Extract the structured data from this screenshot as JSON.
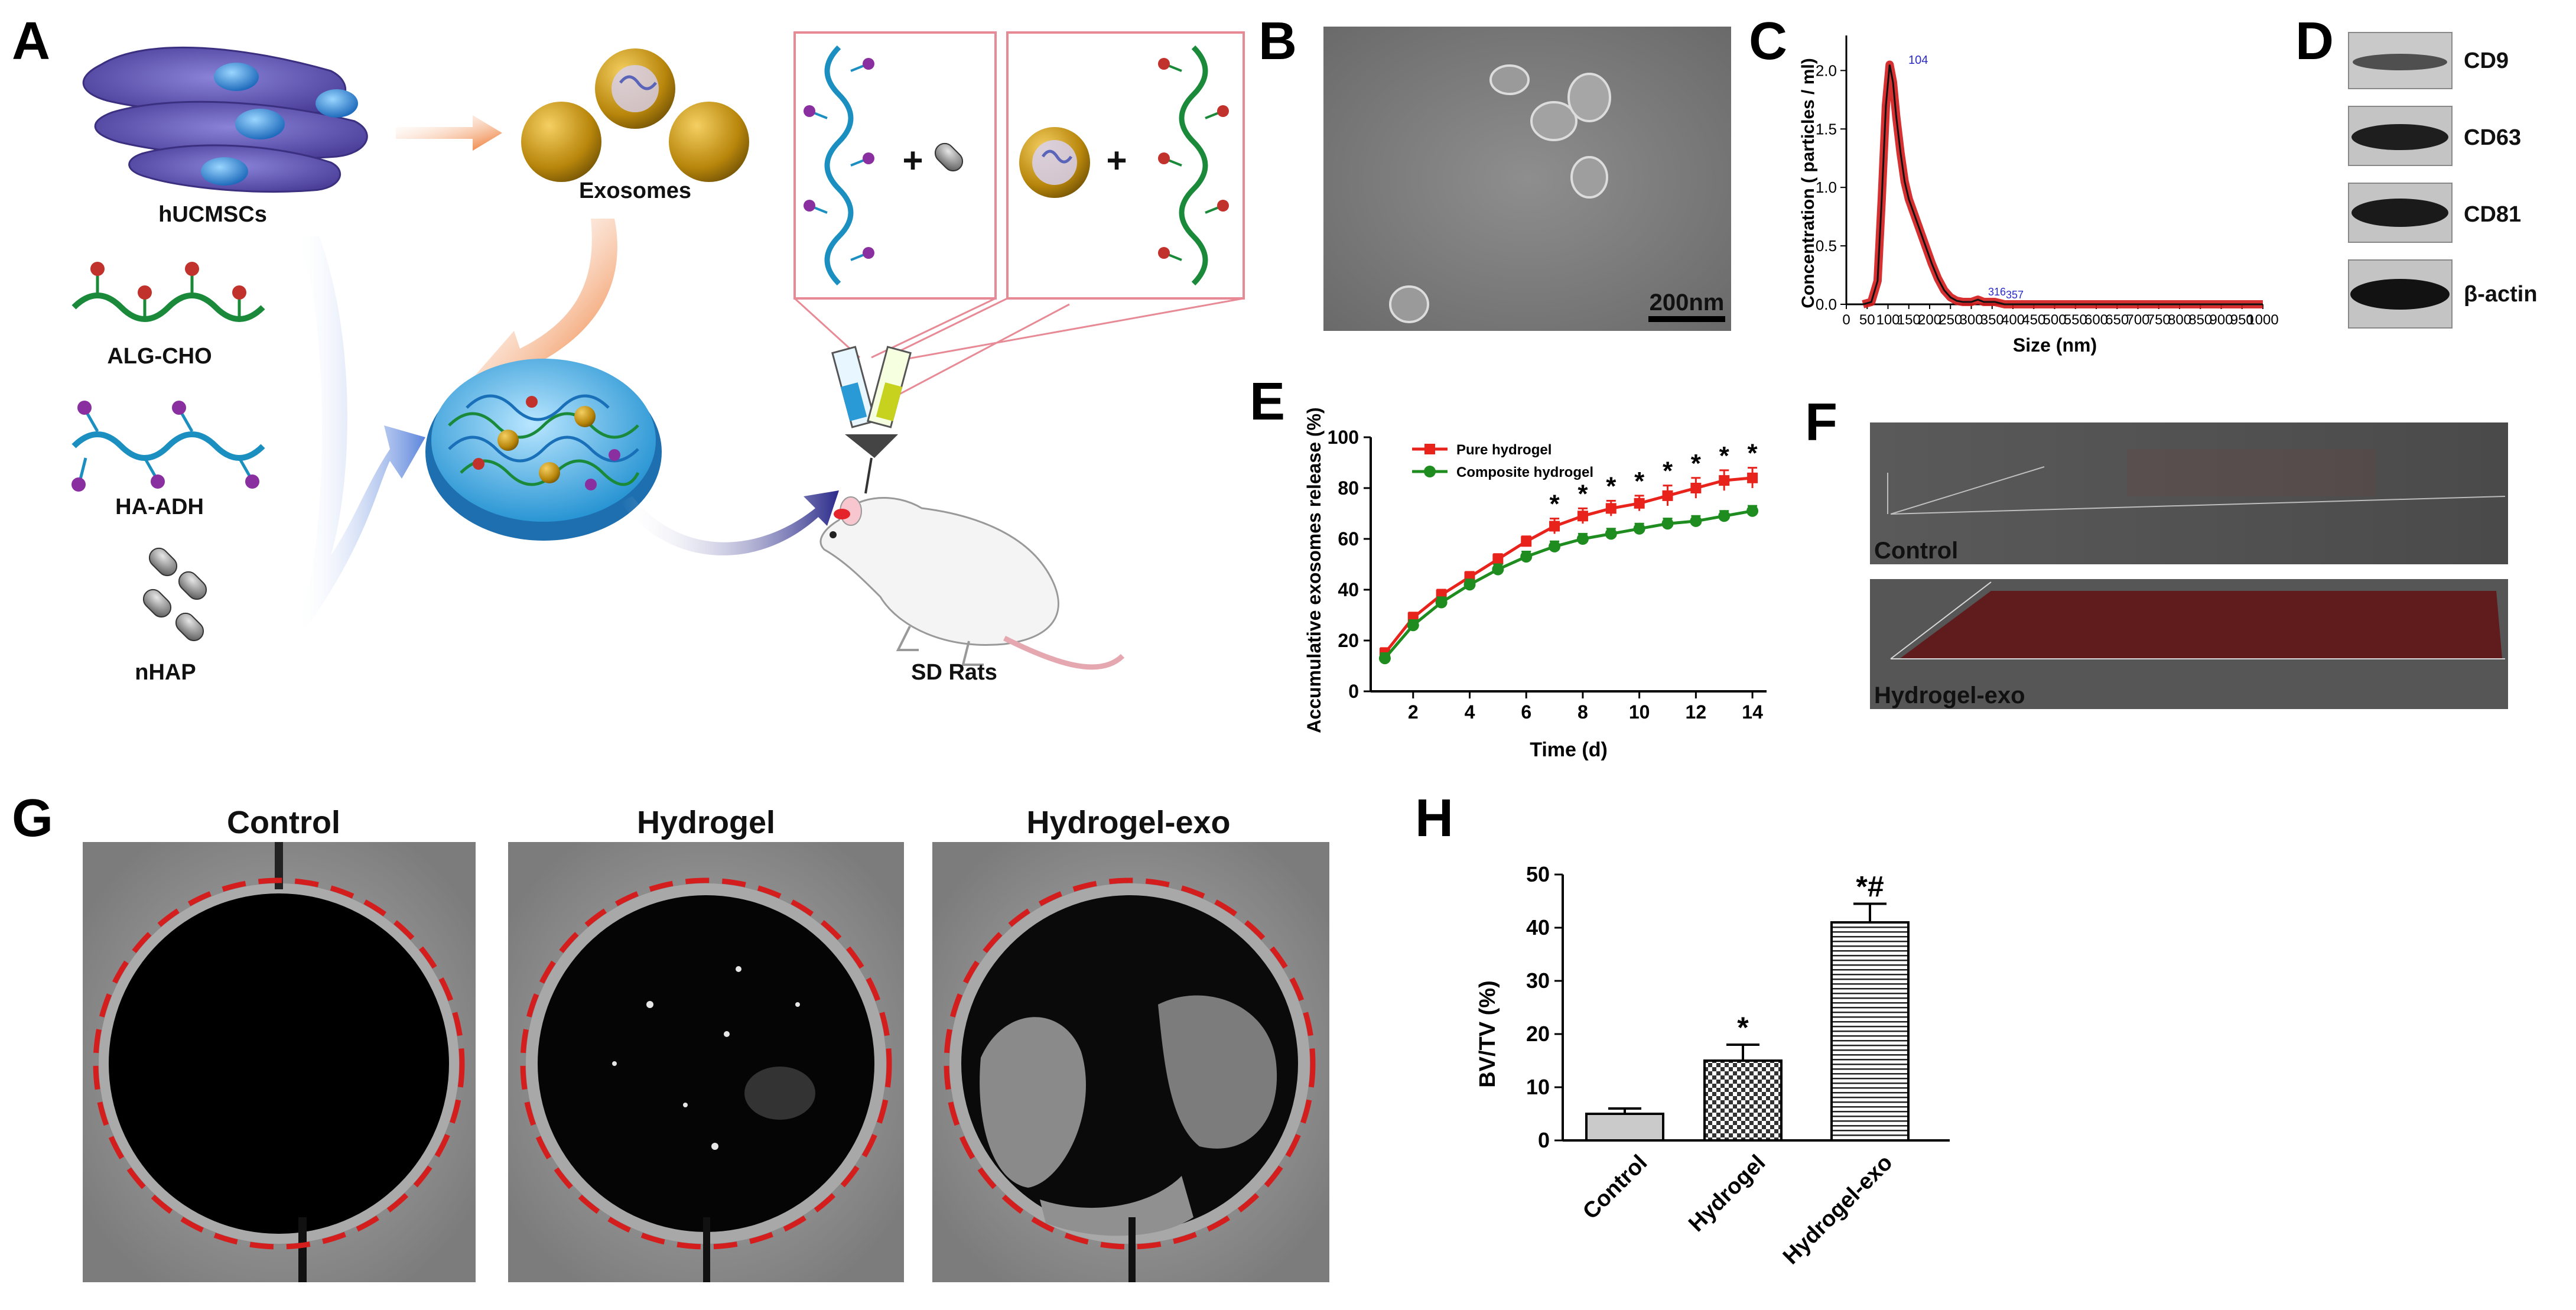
{
  "panels": {
    "a": {
      "letter": "A",
      "labels": {
        "hucmscs": "hUCMSCs",
        "exosomes": "Exosomes",
        "alg_cho": "ALG-CHO",
        "ha_adh": "HA-ADH",
        "nhap": "nHAP",
        "sd_rats": "SD Rats",
        "plus": "+"
      }
    },
    "b": {
      "letter": "B",
      "scale_bar": "200nm"
    },
    "c": {
      "letter": "C",
      "peak_label": "104",
      "small_peak_labels": [
        "316",
        "357"
      ]
    },
    "d": {
      "letter": "D",
      "bands": [
        "CD9",
        "CD63",
        "CD81",
        "β-actin"
      ]
    },
    "e": {
      "letter": "E"
    },
    "f": {
      "letter": "F",
      "control_label": "Control",
      "hydrogel_label": "Hydrogel-exo"
    },
    "g": {
      "letter": "G",
      "titles": [
        "Control",
        "Hydrogel",
        "Hydrogel-exo"
      ]
    },
    "h": {
      "letter": "H"
    }
  },
  "chart_data": [
    {
      "id": "C",
      "type": "line",
      "xlabel": "Size (nm)",
      "ylabel": "Concentration ( particles / ml)",
      "xlim": [
        0,
        1000
      ],
      "ylim": [
        0,
        2.3
      ],
      "x_ticks": [
        0,
        50,
        100,
        150,
        200,
        250,
        300,
        350,
        400,
        450,
        500,
        550,
        600,
        650,
        700,
        750,
        800,
        850,
        900,
        950,
        1000
      ],
      "y_ticks": [
        0.0,
        0.5,
        1.0,
        1.5,
        2.0
      ],
      "series": [
        {
          "x": [
            40,
            60,
            75,
            85,
            95,
            104,
            112,
            120,
            130,
            140,
            150,
            160,
            175,
            190,
            205,
            220,
            235,
            250,
            265,
            280,
            300,
            316,
            330,
            357,
            380,
            420,
            500,
            1000
          ],
          "y": [
            0.0,
            0.02,
            0.2,
            0.9,
            1.7,
            2.05,
            1.9,
            1.6,
            1.3,
            1.05,
            0.9,
            0.8,
            0.65,
            0.5,
            0.35,
            0.22,
            0.12,
            0.06,
            0.03,
            0.02,
            0.02,
            0.04,
            0.02,
            0.02,
            0.0,
            0.0,
            0.0,
            0.0
          ]
        }
      ]
    },
    {
      "id": "E",
      "type": "line",
      "xlabel": "Time (d)",
      "ylabel": "Accumulative exosomes release (%)",
      "xlim": [
        0.5,
        14.5
      ],
      "ylim": [
        0,
        100
      ],
      "x_ticks": [
        2,
        4,
        6,
        8,
        10,
        12,
        14
      ],
      "y_ticks": [
        0,
        20,
        40,
        60,
        80,
        100
      ],
      "legend": "top-left",
      "series": [
        {
          "name": "Pure hydrogel",
          "color": "#e8231c",
          "x": [
            1,
            2,
            3,
            4,
            5,
            6,
            7,
            8,
            9,
            10,
            11,
            12,
            13,
            14
          ],
          "y": [
            15,
            29,
            38,
            45,
            52,
            59,
            65,
            69,
            72,
            74,
            77,
            80,
            83,
            84
          ],
          "err": [
            2,
            2,
            2,
            2,
            2,
            2,
            3,
            3,
            3,
            3,
            4,
            4,
            4,
            4
          ]
        },
        {
          "name": "Composite hydrogel",
          "color": "#1e8c1e",
          "x": [
            1,
            2,
            3,
            4,
            5,
            6,
            7,
            8,
            9,
            10,
            11,
            12,
            13,
            14
          ],
          "y": [
            13,
            26,
            35,
            42,
            48,
            53,
            57,
            60,
            62,
            64,
            66,
            67,
            69,
            71
          ],
          "err": [
            2,
            2,
            2,
            2,
            2,
            2,
            2,
            2,
            2,
            2,
            2,
            2,
            2,
            2
          ]
        }
      ],
      "significance": {
        "x": [
          7,
          8,
          9,
          10,
          11,
          12,
          13,
          14
        ],
        "mark": "*"
      }
    },
    {
      "id": "H",
      "type": "bar",
      "ylabel": "BV/TV (%)",
      "ylim": [
        0,
        50
      ],
      "y_ticks": [
        0,
        10,
        20,
        30,
        40,
        50
      ],
      "categories": [
        "Control",
        "Hydrogel",
        "Hydrogel-exo"
      ],
      "values": [
        5,
        15,
        41
      ],
      "errors": [
        1,
        3,
        3.5
      ],
      "annotations": [
        "",
        "*",
        "*#"
      ]
    }
  ]
}
